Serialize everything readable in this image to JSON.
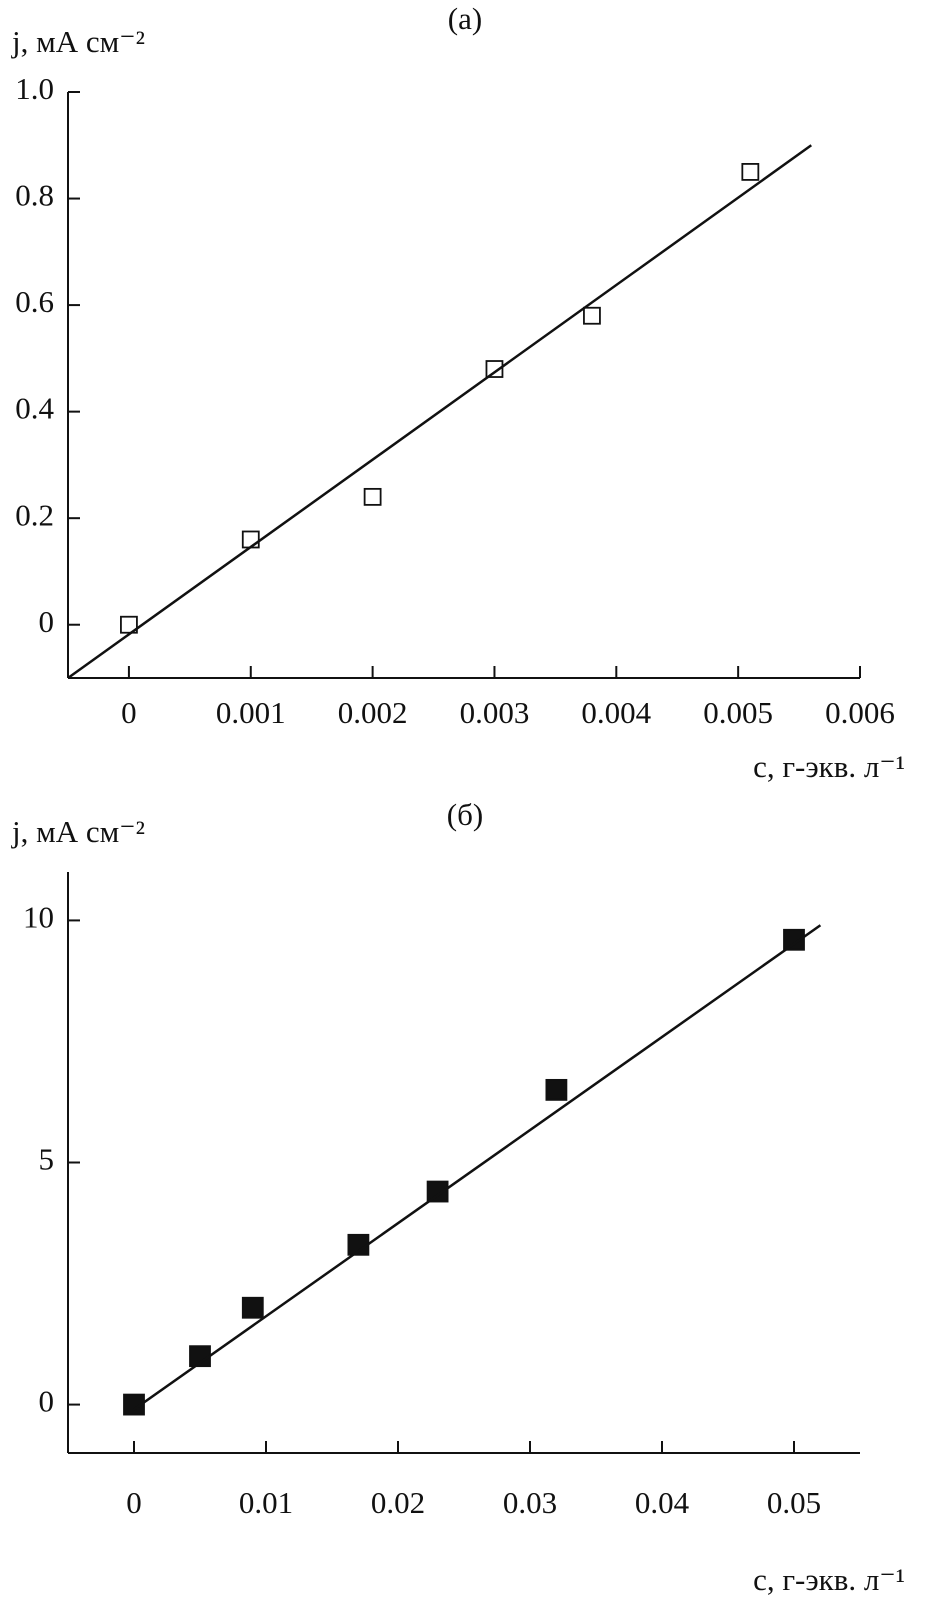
{
  "chart_data": [
    {
      "type": "scatter",
      "title": "(а)",
      "y_label": "j, мА см⁻²",
      "x_label": "c, г-экв. л⁻¹",
      "xlim": [
        -0.0005,
        0.006
      ],
      "ylim": [
        -0.1,
        1.0
      ],
      "xticks": [
        0,
        0.001,
        0.002,
        0.003,
        0.004,
        0.005,
        0.006
      ],
      "yticks": [
        0,
        0.2,
        0.4,
        0.6,
        0.8,
        {
          "value": 1,
          "label": "1.0"
        }
      ],
      "series": [
        {
          "style": "open-square",
          "color": "#111111",
          "x": [
            0,
            0.001,
            0.002,
            0.003,
            0.0038,
            0.0051
          ],
          "values": [
            0,
            0.16,
            0.24,
            0.48,
            0.58,
            0.85
          ]
        },
        {
          "style": "line",
          "color": "#111111",
          "x": [
            -0.0005,
            0.0056
          ],
          "values": [
            -0.1,
            0.9
          ]
        }
      ]
    },
    {
      "type": "scatter",
      "title": "(б)",
      "y_label": "j, мА см⁻²",
      "x_label": "c, г-экв. л⁻¹",
      "xlim": [
        -0.005,
        0.055
      ],
      "ylim": [
        -1,
        11
      ],
      "xticks": [
        0,
        0.01,
        0.02,
        0.03,
        0.04,
        0.05
      ],
      "yticks": [
        0,
        5,
        10
      ],
      "series": [
        {
          "style": "filled-square",
          "color": "#111111",
          "x": [
            0,
            0.005,
            0.009,
            0.017,
            0.023,
            0.032,
            0.05
          ],
          "values": [
            0,
            1.0,
            2.0,
            3.3,
            4.4,
            6.5,
            9.6
          ]
        },
        {
          "style": "line",
          "color": "#111111",
          "x": [
            0,
            0.052
          ],
          "values": [
            -0.1,
            9.9
          ]
        }
      ]
    }
  ]
}
